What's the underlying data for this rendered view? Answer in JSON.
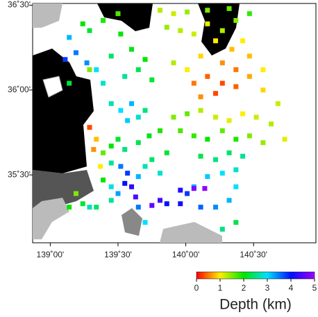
{
  "chart_data": {
    "type": "scatter",
    "xlim": [
      138.87,
      140.96
    ],
    "ylim": [
      35.1,
      36.51
    ],
    "xticks": [
      {
        "value": 139,
        "label": "139˚00'"
      },
      {
        "value": 139.5,
        "label": "139˚30'"
      },
      {
        "value": 140,
        "label": "140˚00'"
      },
      {
        "value": 140.5,
        "label": "140˚30'"
      }
    ],
    "yticks": [
      {
        "value": 35.5,
        "label": "35˚30'"
      },
      {
        "value": 36,
        "label": "36˚00'"
      },
      {
        "value": 36.5,
        "label": "36˚30'"
      }
    ],
    "x": [
      139.81,
      139.91,
      140.01,
      140.16,
      140.32,
      140.47,
      139.86,
      139.96,
      140.06,
      140.16,
      140.27,
      140.37,
      140.42,
      140.34,
      140.22,
      140.11,
      140.27,
      140.37,
      140.47,
      140.16,
      140.06,
      140.27,
      140.37,
      140.57,
      140.68,
      140.22,
      140.11,
      140.01,
      139.91,
      140.47,
      140.57,
      139.14,
      139.19,
      139.11,
      139.24,
      139.29,
      139.39,
      139.5,
      139.52,
      139.34,
      139.45,
      139.6,
      139.65,
      139.7,
      139.75,
      139.55,
      139.29,
      139.39,
      139.45,
      139.52,
      139.6,
      139.57,
      139.65,
      139.7,
      139.5,
      139.45,
      139.55,
      139.65,
      139.73,
      139.81,
      139.39,
      139.34,
      139.29,
      139.32,
      139.37,
      139.45,
      139.52,
      139.57,
      139.55,
      139.6,
      139.63,
      139.5,
      139.45,
      139.39,
      139.65,
      139.7,
      139.75,
      139.86,
      139.81,
      139.91,
      140.01,
      140.11,
      140.22,
      140.32,
      140.42,
      140.52,
      140.63,
      140.73,
      139.96,
      140.06,
      140.16,
      140.27,
      140.37,
      140.47,
      140.57,
      140.11,
      140.22,
      140.32,
      140.42,
      140.37,
      140.27,
      140.16,
      140.06,
      140.37,
      140.32,
      140.22,
      140.11,
      140.01,
      139.96,
      140.06,
      140.14,
      139.96,
      139.86,
      139.75,
      139.81,
      140.27,
      140.37,
      139.14,
      139.24,
      139.34,
      139.45,
      139.19,
      139.29,
      139.65,
      139.7,
      139.14,
      139.27
    ],
    "y": [
      36.47,
      36.45,
      36.46,
      36.47,
      36.48,
      36.45,
      36.37,
      36.35,
      36.33,
      36.39,
      36.35,
      36.41,
      36.29,
      36.24,
      36.29,
      36.2,
      36.16,
      36.12,
      36.08,
      36.08,
      36.04,
      36.04,
      36.02,
      36.0,
      35.92,
      35.98,
      35.96,
      36.12,
      36.16,
      36.2,
      36.12,
      36.31,
      36.22,
      36.18,
      36.39,
      36.35,
      36.41,
      36.45,
      36.33,
      36.12,
      36.2,
      36.24,
      36.12,
      36.18,
      36.06,
      36.08,
      36.12,
      36.04,
      35.92,
      35.88,
      35.92,
      35.82,
      35.84,
      35.88,
      35.71,
      35.67,
      35.65,
      35.69,
      35.73,
      35.76,
      35.63,
      35.71,
      35.78,
      35.65,
      35.55,
      35.57,
      35.55,
      35.51,
      35.45,
      35.43,
      35.37,
      35.39,
      35.43,
      35.47,
      35.49,
      35.55,
      35.59,
      35.63,
      35.51,
      35.84,
      35.86,
      35.88,
      35.84,
      35.82,
      35.86,
      35.84,
      35.8,
      35.71,
      35.76,
      35.73,
      35.71,
      35.76,
      35.71,
      35.73,
      35.69,
      35.61,
      35.59,
      35.63,
      35.61,
      35.53,
      35.51,
      35.49,
      35.43,
      35.43,
      35.35,
      35.31,
      35.31,
      35.39,
      35.41,
      35.42,
      35.42,
      35.33,
      35.33,
      35.32,
      35.35,
      35.18,
      35.22,
      35.31,
      35.33,
      35.31,
      35.35,
      35.39,
      35.31,
      35.31,
      35.22,
      36.04,
      36.16
    ],
    "values": [
      1.3,
      1.2,
      1.4,
      1.5,
      1.6,
      1.8,
      1.4,
      1.3,
      1.2,
      1.1,
      1.3,
      1.5,
      1.0,
      0.8,
      1.0,
      0.9,
      0.6,
      0.5,
      0.7,
      0.4,
      0.5,
      0.3,
      0.4,
      0.9,
      1.2,
      0.3,
      0.6,
      1.0,
      1.3,
      0.8,
      1.0,
      3.2,
      3.5,
      3.8,
      2.0,
      2.2,
      1.9,
      1.7,
      2.0,
      3.0,
      2.4,
      2.1,
      2.3,
      2.0,
      2.2,
      2.6,
      1.5,
      2.8,
      2.7,
      3.0,
      3.2,
      3.1,
      2.8,
      2.5,
      2.2,
      2.0,
      2.5,
      2.3,
      2.1,
      1.9,
      1.6,
      0.8,
      0.3,
      0.6,
      1.0,
      2.6,
      3.5,
      3.8,
      4.0,
      4.3,
      4.5,
      3.3,
      2.9,
      2.0,
      3.2,
      2.7,
      2.4,
      2.2,
      2.8,
      1.5,
      1.6,
      1.3,
      1.2,
      1.1,
      1.0,
      1.2,
      1.3,
      1.1,
      1.7,
      1.8,
      2.0,
      1.6,
      1.9,
      1.5,
      1.4,
      2.3,
      2.5,
      2.4,
      2.6,
      2.8,
      3.0,
      3.1,
      3.2,
      3.0,
      3.2,
      3.4,
      3.6,
      3.8,
      4.2,
      4.8,
      4.9,
      4.1,
      4.0,
      4.6,
      4.4,
      2.5,
      2.3,
      2.0,
      2.2,
      2.4,
      2.6,
      1.5,
      2.7,
      3.5,
      3.0,
      2.2,
      3.4
    ],
    "colormap": [
      "#ff0000",
      "#ffee00",
      "#00e600",
      "#00e0ff",
      "#0010ff",
      "#a000ff"
    ],
    "colorbar": {
      "label": "Depth (km)",
      "lim": [
        0,
        5
      ],
      "ticks": [
        0,
        1,
        2,
        3,
        4,
        5
      ]
    }
  }
}
